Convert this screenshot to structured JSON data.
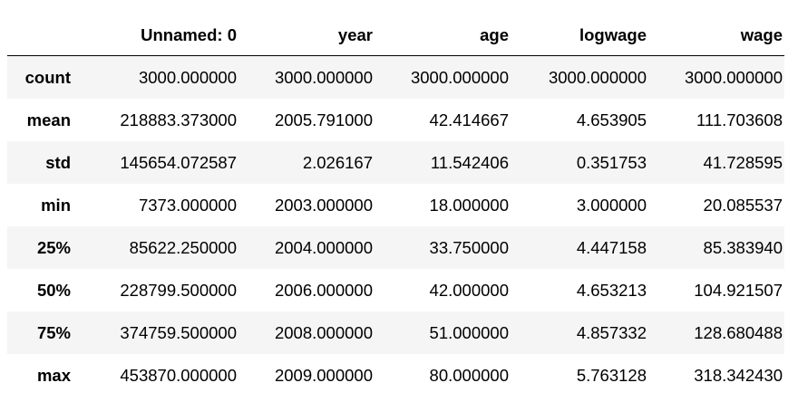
{
  "table": {
    "columns": [
      "",
      "Unnamed: 0",
      "year",
      "age",
      "logwage",
      "wage"
    ],
    "rows": [
      {
        "label": "count",
        "cells": [
          "3000.000000",
          "3000.000000",
          "3000.000000",
          "3000.000000",
          "3000.000000"
        ]
      },
      {
        "label": "mean",
        "cells": [
          "218883.373000",
          "2005.791000",
          "42.414667",
          "4.653905",
          "111.703608"
        ]
      },
      {
        "label": "std",
        "cells": [
          "145654.072587",
          "2.026167",
          "11.542406",
          "0.351753",
          "41.728595"
        ]
      },
      {
        "label": "min",
        "cells": [
          "7373.000000",
          "2003.000000",
          "18.000000",
          "3.000000",
          "20.085537"
        ]
      },
      {
        "label": "25%",
        "cells": [
          "85622.250000",
          "2004.000000",
          "33.750000",
          "4.447158",
          "85.383940"
        ]
      },
      {
        "label": "50%",
        "cells": [
          "228799.500000",
          "2006.000000",
          "42.000000",
          "4.653213",
          "104.921507"
        ]
      },
      {
        "label": "75%",
        "cells": [
          "374759.500000",
          "2008.000000",
          "51.000000",
          "4.857332",
          "128.680488"
        ]
      },
      {
        "label": "max",
        "cells": [
          "453870.000000",
          "2009.000000",
          "80.000000",
          "5.763128",
          "318.342430"
        ]
      }
    ]
  },
  "colors": {
    "stripe": "#f5f5f5",
    "header_border": "#000000",
    "text": "#000000"
  }
}
